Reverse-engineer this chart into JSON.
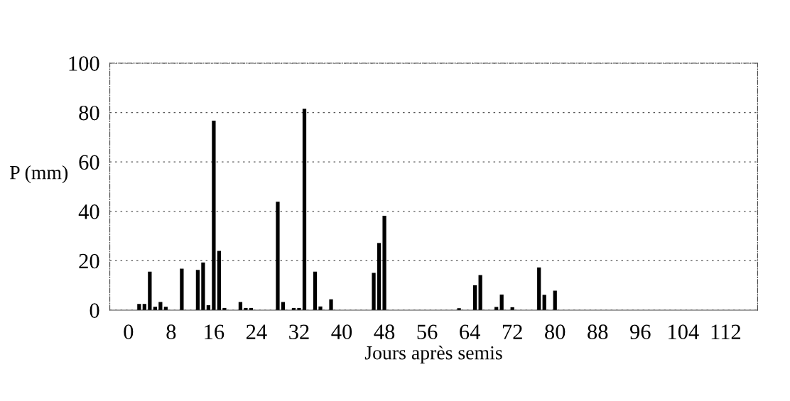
{
  "chart_data": {
    "type": "bar",
    "xlabel": "Jours après semis",
    "ylabel": "P (mm)",
    "x": [
      2,
      3,
      4,
      5,
      6,
      7,
      10,
      13,
      14,
      15,
      16,
      17,
      18,
      21,
      22,
      23,
      28,
      29,
      31,
      32,
      33,
      35,
      36,
      38,
      46,
      47,
      48,
      62,
      65,
      66,
      69,
      70,
      72,
      77,
      78,
      80
    ],
    "values": [
      2.5,
      2.5,
      15.6,
      1.4,
      3.3,
      1.4,
      16.8,
      16.3,
      19.3,
      2,
      76.7,
      24,
      0.9,
      3.3,
      0.9,
      0.9,
      43.9,
      3.3,
      0.9,
      0.9,
      81.5,
      15.6,
      1.5,
      4.4,
      15.1,
      27.2,
      38.2,
      0.8,
      10.1,
      14.2,
      1.3,
      6.3,
      1.2,
      17.3,
      6.2,
      7.9
    ],
    "color": "#000000",
    "xlim": [
      -3.5,
      118
    ],
    "xticks": [
      0,
      8,
      16,
      24,
      32,
      40,
      48,
      56,
      64,
      72,
      80,
      88,
      96,
      104,
      112
    ],
    "ylim": [
      0,
      100
    ],
    "yticks": [
      0,
      20,
      40,
      60,
      80,
      100
    ],
    "grid": "y"
  }
}
